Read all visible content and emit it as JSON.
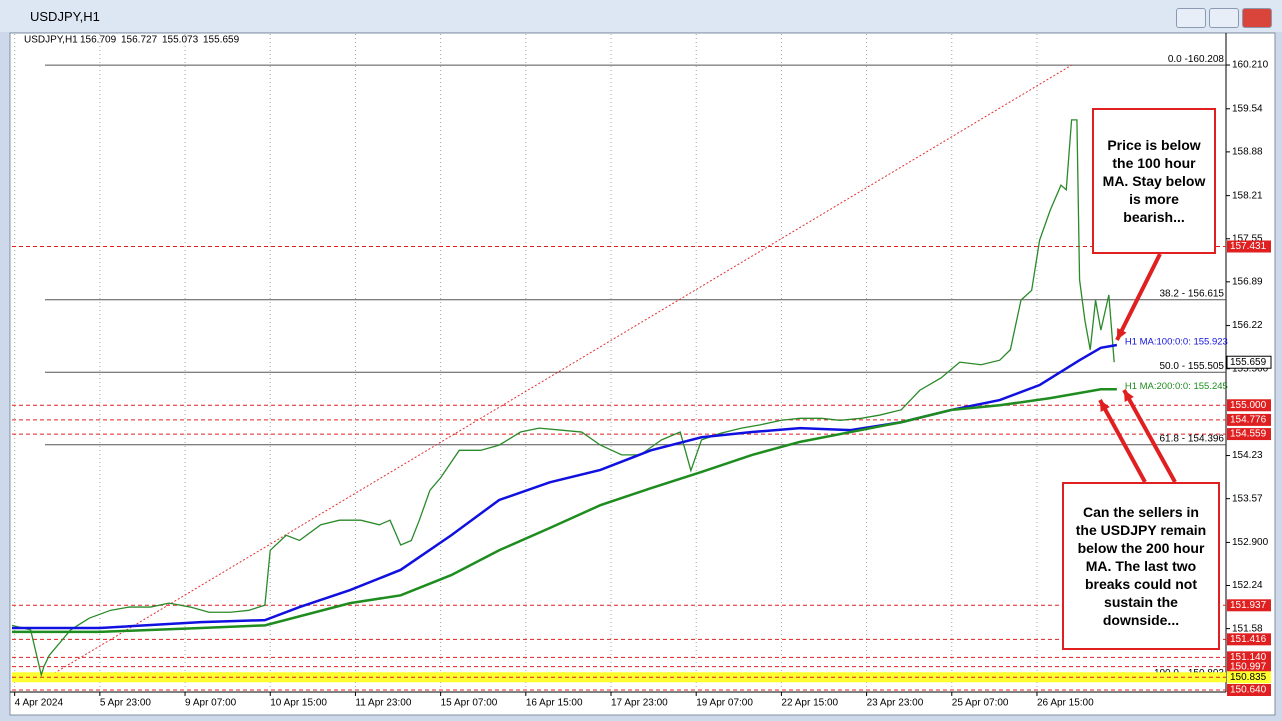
{
  "window_title": "USDJPY,H1",
  "chart_data": {
    "type": "line",
    "symbol": "USDJPY,H1",
    "ohlc": [
      156.709,
      156.727,
      155.073,
      155.659
    ],
    "xlim": [
      0,
      456
    ],
    "ylim": [
      150.64,
      160.685
    ],
    "xticks": [
      {
        "value": 1,
        "label": "4 Apr 2024"
      },
      {
        "value": 33,
        "label": "5 Apr 23:00"
      },
      {
        "value": 65,
        "label": "9 Apr 07:00"
      },
      {
        "value": 97,
        "label": "10 Apr 15:00"
      },
      {
        "value": 129,
        "label": "11 Apr 23:00"
      },
      {
        "value": 161,
        "label": "15 Apr 07:00"
      },
      {
        "value": 193,
        "label": "16 Apr 15:00"
      },
      {
        "value": 225,
        "label": "17 Apr 23:00"
      },
      {
        "value": 257,
        "label": "19 Apr 07:00"
      },
      {
        "value": 289,
        "label": "22 Apr 15:00"
      },
      {
        "value": 321,
        "label": "23 Apr 23:00"
      },
      {
        "value": 353,
        "label": "25 Apr 07:00"
      },
      {
        "value": 385,
        "label": "26 Apr 15:00"
      }
    ],
    "yticks": [
      {
        "value": 160.21,
        "label": "160.210"
      },
      159.54,
      158.88,
      158.21,
      157.55,
      156.89,
      156.22,
      {
        "value": 155.56,
        "label": "155.560"
      },
      154.23,
      153.57,
      {
        "value": 152.9,
        "label": "152.900"
      },
      152.24,
      151.58
    ],
    "grid": true,
    "series": [
      {
        "color": "#2a8a2a",
        "x": [
          0,
          7,
          11,
          12,
          14,
          22,
          29,
          37,
          44,
          52,
          59,
          67,
          74,
          82,
          89,
          95,
          97,
          103,
          108,
          116,
          123,
          131,
          138,
          142,
          146,
          150,
          153,
          157,
          161,
          168,
          176,
          183,
          191,
          198,
          206,
          214,
          221,
          229,
          236,
          244,
          251,
          255,
          259,
          266,
          274,
          281,
          289,
          296,
          304,
          311,
          319,
          326,
          334,
          341,
          349,
          356,
          364,
          371,
          375,
          379,
          383,
          386,
          390,
          394,
          396,
          398,
          400,
          401,
          403,
          405,
          407,
          409,
          412,
          414
        ],
        "values": [
          151.63,
          151.56,
          150.87,
          151.0,
          151.17,
          151.56,
          151.74,
          151.86,
          151.91,
          151.91,
          151.97,
          151.91,
          151.83,
          151.83,
          151.86,
          151.94,
          152.78,
          153.01,
          152.93,
          153.17,
          153.24,
          153.24,
          153.17,
          153.24,
          152.86,
          152.93,
          153.24,
          153.7,
          153.89,
          154.31,
          154.31,
          154.39,
          154.59,
          154.65,
          154.62,
          154.59,
          154.39,
          154.24,
          154.24,
          154.47,
          154.59,
          154.0,
          154.47,
          154.57,
          154.65,
          154.7,
          154.77,
          154.8,
          154.8,
          154.77,
          154.8,
          154.85,
          154.93,
          155.23,
          155.42,
          155.66,
          155.62,
          155.69,
          155.85,
          156.61,
          156.76,
          157.53,
          157.99,
          158.37,
          158.3,
          159.37,
          159.37,
          156.92,
          156.3,
          155.85,
          156.61,
          156.15,
          156.69,
          155.659
        ]
      },
      {
        "name": "H1 MA:100:0:0: 155.923",
        "color": "#1010e0",
        "x": [
          0,
          33,
          71,
          95,
          108,
          127,
          146,
          165,
          183,
          202,
          221,
          240,
          259,
          278,
          296,
          315,
          334,
          353,
          371,
          386,
          401,
          409,
          415
        ],
        "values": [
          151.59,
          151.59,
          151.68,
          151.71,
          151.91,
          152.17,
          152.48,
          153.01,
          153.55,
          153.82,
          154.01,
          154.31,
          154.51,
          154.59,
          154.65,
          154.62,
          154.74,
          154.93,
          155.08,
          155.31,
          155.69,
          155.88,
          155.923
        ]
      },
      {
        "name": "H1 MA:200:0:0: 155.245",
        "color": "#1e8c1e",
        "x": [
          0,
          33,
          71,
          95,
          127,
          146,
          165,
          183,
          202,
          221,
          240,
          259,
          278,
          296,
          315,
          334,
          353,
          371,
          390,
          409,
          415
        ],
        "values": [
          151.53,
          151.53,
          151.59,
          151.63,
          151.97,
          152.09,
          152.4,
          152.78,
          153.12,
          153.47,
          153.73,
          153.98,
          154.24,
          154.44,
          154.59,
          154.74,
          154.93,
          155.0,
          155.11,
          155.245,
          155.245
        ]
      }
    ],
    "price_levels": [
      157.431,
      {
        "value": 155,
        "label": "155.000"
      },
      154.776,
      154.559,
      151.937,
      151.416,
      {
        "value": 151.14,
        "label": "151.140"
      },
      150.997,
      150.835,
      {
        "value": 150.64,
        "label": "150.640"
      }
    ],
    "highlight_level": 150.835,
    "current_price": 155.659,
    "fib_levels": [
      {
        "value": 160.208,
        "label": "0.0 -160.208"
      },
      {
        "value": 156.615,
        "label": "38.2 - 156.615"
      },
      {
        "value": 155.505,
        "label": "50.0 - 155.505"
      },
      {
        "value": 154.396,
        "label": "61.8 - 154.396"
      },
      {
        "value": 150.803,
        "label": "100.0 - 150.803"
      }
    ],
    "annotations": [
      "Price is below the 100 hour MA.  Stay below is more bearish...",
      "Can the sellers in the USDJPY remain below the 200 hour MA. The last two breaks could not sustain the downside..."
    ]
  }
}
